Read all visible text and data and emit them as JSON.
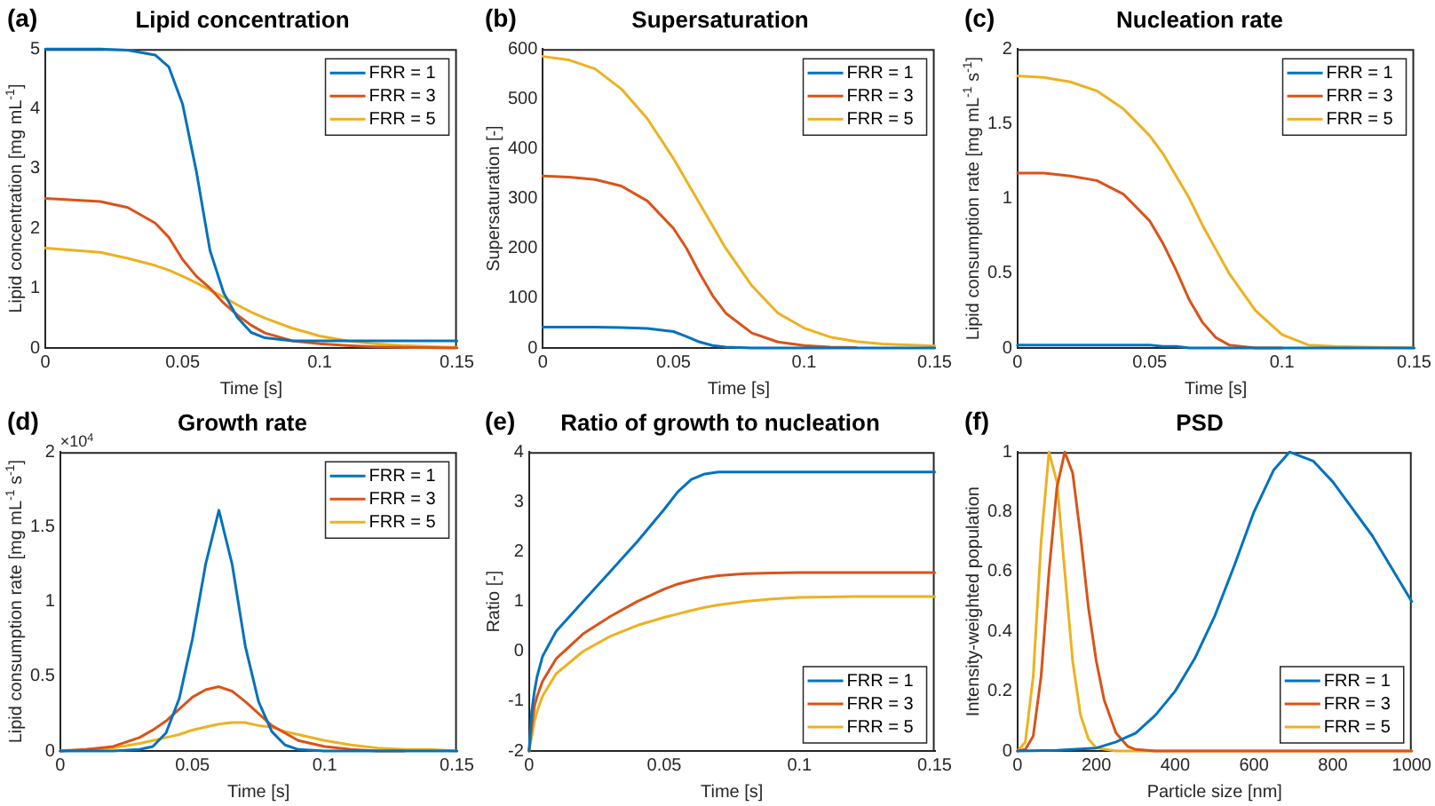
{
  "chart_data": [
    {
      "type": "line",
      "title": "Lipid concentration",
      "xlabel": "Time [s]",
      "ylabel": "Lipid concentration [mg mL$^{-1}$]",
      "annotations": [
        "(a)"
      ],
      "xlim": [
        0,
        0.15
      ],
      "xticks": [
        0,
        0.05,
        0.1,
        0.15
      ],
      "ylim": [
        0,
        5
      ],
      "yticks": [
        0,
        1,
        2,
        3,
        4,
        5
      ],
      "grid": false,
      "legend": "top right",
      "line_style": "solid",
      "marker": "none",
      "x": [
        0,
        0.02,
        0.03,
        0.04,
        0.045,
        0.05,
        0.055,
        0.06,
        0.065,
        0.07,
        0.075,
        0.08,
        0.09,
        0.1,
        0.11,
        0.12,
        0.13,
        0.15
      ],
      "series": [
        {
          "name": "FRR = 1",
          "color": "#0072bd",
          "values": [
            5,
            5,
            4.98,
            4.9,
            4.7,
            4.08,
            2.96,
            1.63,
            0.92,
            0.51,
            0.26,
            0.17,
            0.12,
            0.12,
            0.12,
            0.12,
            0.12,
            0.12
          ]
        },
        {
          "name": "FRR = 3",
          "color": "#d95319",
          "values": [
            2.5,
            2.45,
            2.35,
            2.09,
            1.85,
            1.48,
            1.2,
            1.0,
            0.75,
            0.55,
            0.38,
            0.25,
            0.12,
            0.07,
            0.04,
            0.02,
            0.01,
            0
          ]
        },
        {
          "name": "FRR = 5",
          "color": "#edb120",
          "values": [
            1.67,
            1.6,
            1.5,
            1.38,
            1.3,
            1.2,
            1.09,
            0.97,
            0.85,
            0.72,
            0.6,
            0.5,
            0.33,
            0.2,
            0.12,
            0.07,
            0.04,
            0.01
          ]
        }
      ]
    },
    {
      "type": "line",
      "title": "Supersaturation",
      "xlabel": "Time [s]",
      "ylabel": "Supersaturation [-]",
      "annotations": [
        "(b)"
      ],
      "xlim": [
        0,
        0.15
      ],
      "xticks": [
        0,
        0.05,
        0.1,
        0.15
      ],
      "ylim": [
        0,
        600
      ],
      "yticks": [
        0,
        100,
        200,
        300,
        400,
        500,
        600
      ],
      "grid": false,
      "legend": "top right",
      "line_style": "solid",
      "marker": "none",
      "x": [
        0,
        0.01,
        0.02,
        0.03,
        0.04,
        0.05,
        0.055,
        0.06,
        0.065,
        0.07,
        0.08,
        0.09,
        0.1,
        0.11,
        0.12,
        0.13,
        0.15
      ],
      "series": [
        {
          "name": "FRR = 1",
          "color": "#0072bd",
          "values": [
            42,
            42,
            42,
            41,
            39,
            33,
            23,
            12,
            5,
            2,
            0,
            0,
            0,
            0,
            0,
            0,
            0
          ]
        },
        {
          "name": "FRR = 3",
          "color": "#d95319",
          "values": [
            345,
            343,
            338,
            325,
            295,
            240,
            200,
            150,
            105,
            70,
            30,
            12,
            5,
            2,
            1,
            null,
            null
          ]
        },
        {
          "name": "FRR = 5",
          "color": "#edb120",
          "values": [
            585,
            578,
            560,
            520,
            460,
            380,
            335,
            290,
            245,
            200,
            125,
            70,
            40,
            22,
            13,
            8,
            4
          ]
        }
      ]
    },
    {
      "type": "line",
      "title": "Nucleation rate",
      "xlabel": "Time [s]",
      "ylabel": "Lipid consumption rate [mg mL$^{-1}$ s$^{-1}$]",
      "annotations": [
        "(c)"
      ],
      "xlim": [
        0,
        0.15
      ],
      "xticks": [
        0,
        0.05,
        0.1,
        0.15
      ],
      "ylim": [
        0,
        2
      ],
      "yticks": [
        0,
        0.5,
        1,
        1.5,
        2
      ],
      "grid": false,
      "legend": "top right",
      "line_style": "solid",
      "marker": "none",
      "x": [
        0,
        0.01,
        0.02,
        0.03,
        0.04,
        0.05,
        0.055,
        0.06,
        0.065,
        0.07,
        0.075,
        0.08,
        0.09,
        0.1,
        0.11,
        0.12,
        0.15
      ],
      "series": [
        {
          "name": "FRR = 1",
          "color": "#0072bd",
          "values": [
            0.02,
            0.02,
            0.02,
            0.02,
            0.02,
            0.02,
            0.01,
            0.01,
            0,
            0,
            0,
            0,
            0,
            0,
            0,
            0,
            0
          ]
        },
        {
          "name": "FRR = 3",
          "color": "#d95319",
          "values": [
            1.17,
            1.17,
            1.15,
            1.12,
            1.03,
            0.85,
            0.7,
            0.52,
            0.32,
            0.17,
            0.07,
            0.02,
            0,
            0,
            null,
            null,
            null
          ]
        },
        {
          "name": "FRR = 5",
          "color": "#edb120",
          "values": [
            1.82,
            1.81,
            1.78,
            1.72,
            1.6,
            1.42,
            1.3,
            1.15,
            1.0,
            0.82,
            0.66,
            0.5,
            0.25,
            0.09,
            0.02,
            0.01,
            0
          ]
        }
      ]
    },
    {
      "type": "line",
      "title": "Growth rate",
      "xlabel": "Time [s]",
      "ylabel": "Lipid consumption rate [mg mL$^{-1}$ s$^{-1}$]",
      "annotations": [
        "(d)",
        "×10$^{4}$"
      ],
      "xlim": [
        0,
        0.15
      ],
      "xticks": [
        0,
        0.05,
        0.1,
        0.15
      ],
      "ylim": [
        0,
        2
      ],
      "yticks": [
        0,
        0.5,
        1,
        1.5,
        2
      ],
      "grid": false,
      "legend": "top right",
      "line_style": "solid",
      "marker": "none",
      "x": [
        0,
        0.01,
        0.02,
        0.03,
        0.035,
        0.04,
        0.045,
        0.05,
        0.055,
        0.06,
        0.065,
        0.07,
        0.075,
        0.08,
        0.085,
        0.09,
        0.1,
        0.11,
        0.12,
        0.13,
        0.14,
        0.15
      ],
      "series": [
        {
          "name": "FRR = 1",
          "color": "#0072bd",
          "values": [
            0,
            0,
            0,
            0.01,
            0.03,
            0.12,
            0.35,
            0.75,
            1.25,
            1.61,
            1.25,
            0.7,
            0.33,
            0.13,
            0.04,
            0.01,
            0,
            0,
            0,
            0,
            0,
            0
          ]
        },
        {
          "name": "FRR = 3",
          "color": "#d95319",
          "values": [
            0,
            0.01,
            0.03,
            0.09,
            0.14,
            0.2,
            0.28,
            0.36,
            0.41,
            0.43,
            0.4,
            0.33,
            0.25,
            0.17,
            0.12,
            0.07,
            0.03,
            0.01,
            0,
            0,
            null,
            null
          ]
        },
        {
          "name": "FRR = 5",
          "color": "#edb120",
          "values": [
            0,
            0.01,
            0.02,
            0.05,
            0.07,
            0.09,
            0.11,
            0.14,
            0.16,
            0.18,
            0.19,
            0.19,
            0.17,
            0.16,
            0.13,
            0.11,
            0.07,
            0.04,
            0.02,
            0.01,
            0.01,
            0
          ]
        }
      ]
    },
    {
      "type": "line",
      "title": "Ratio of growth to nucleation",
      "xlabel": "Time [s]",
      "ylabel": "Ratio [-]",
      "annotations": [
        "(e)"
      ],
      "xlim": [
        0,
        0.15
      ],
      "xticks": [
        0,
        0.05,
        0.1,
        0.15
      ],
      "ylim": [
        -2,
        4
      ],
      "yticks": [
        -2,
        -1,
        0,
        1,
        2,
        3,
        4
      ],
      "grid": false,
      "legend": "bottom right",
      "line_style": "solid",
      "marker": "none",
      "x": [
        0,
        0.001,
        0.002,
        0.003,
        0.005,
        0.01,
        0.02,
        0.03,
        0.04,
        0.05,
        0.055,
        0.06,
        0.065,
        0.07,
        0.08,
        0.09,
        0.1,
        0.12,
        0.15
      ],
      "series": [
        {
          "name": "FRR = 1",
          "color": "#0072bd",
          "values": [
            -2,
            -1.2,
            -0.8,
            -0.5,
            -0.1,
            0.4,
            1.0,
            1.6,
            2.2,
            2.85,
            3.2,
            3.45,
            3.56,
            3.6,
            3.6,
            3.6,
            3.6,
            3.6,
            3.6
          ]
        },
        {
          "name": "FRR = 3",
          "color": "#d95319",
          "values": [
            -2,
            -1.5,
            -1.1,
            -0.9,
            -0.6,
            -0.15,
            0.35,
            0.7,
            1.0,
            1.25,
            1.35,
            1.42,
            1.48,
            1.52,
            1.56,
            1.57,
            1.58,
            1.58,
            1.58
          ]
        },
        {
          "name": "FRR = 5",
          "color": "#edb120",
          "values": [
            -2,
            -1.7,
            -1.4,
            -1.2,
            -0.9,
            -0.45,
            0,
            0.3,
            0.52,
            0.68,
            0.75,
            0.82,
            0.88,
            0.93,
            1.0,
            1.05,
            1.08,
            1.1,
            1.1
          ]
        }
      ]
    },
    {
      "type": "line",
      "title": "PSD",
      "xlabel": "Particle size [nm]",
      "ylabel": "Intensity-weighted population",
      "annotations": [
        "(f)"
      ],
      "xlim": [
        0,
        1000
      ],
      "xticks": [
        0,
        200,
        400,
        600,
        800,
        1000
      ],
      "ylim": [
        0,
        1
      ],
      "yticks": [
        0,
        0.2,
        0.4,
        0.6,
        0.8,
        1
      ],
      "grid": false,
      "legend": "bottom right",
      "line_style": "solid",
      "marker": "none",
      "series": [
        {
          "name": "FRR = 1",
          "color": "#0072bd",
          "x": [
            0,
            100,
            200,
            250,
            300,
            350,
            400,
            450,
            500,
            550,
            600,
            650,
            690,
            750,
            800,
            850,
            900,
            950,
            1000
          ],
          "values": [
            0,
            0.002,
            0.01,
            0.03,
            0.06,
            0.12,
            0.2,
            0.31,
            0.45,
            0.62,
            0.8,
            0.94,
            1,
            0.97,
            0.9,
            0.81,
            0.72,
            0.61,
            0.5
          ]
        },
        {
          "name": "FRR = 3",
          "color": "#d95319",
          "x": [
            0,
            20,
            40,
            60,
            80,
            100,
            120,
            140,
            160,
            180,
            200,
            220,
            250,
            280,
            300,
            350,
            1000
          ],
          "values": [
            0,
            0.005,
            0.05,
            0.25,
            0.6,
            0.88,
            1,
            0.93,
            0.72,
            0.48,
            0.3,
            0.17,
            0.06,
            0.015,
            0.005,
            0,
            0
          ]
        },
        {
          "name": "FRR = 5",
          "color": "#edb120",
          "x": [
            0,
            20,
            40,
            60,
            80,
            100,
            120,
            140,
            160,
            180,
            200,
            250,
            1000
          ],
          "values": [
            0,
            0.03,
            0.25,
            0.7,
            1,
            0.9,
            0.6,
            0.3,
            0.12,
            0.04,
            0.01,
            0,
            0
          ]
        }
      ]
    }
  ]
}
